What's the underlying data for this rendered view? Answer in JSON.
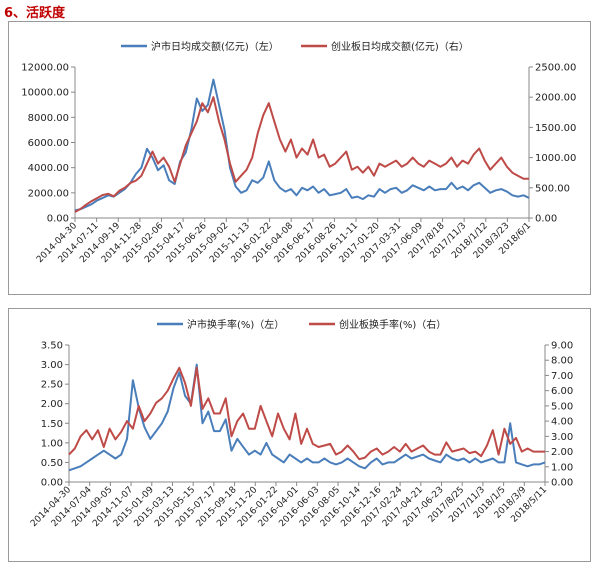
{
  "section_title": "6、活跃度",
  "colors": {
    "blue": "#4a7ebb",
    "red": "#be4b48"
  },
  "chart_data": [
    {
      "type": "line",
      "series": [
        {
          "name": "沪市日均成交额(亿元)（左）",
          "axis": "left",
          "values": [
            600,
            700,
            900,
            1100,
            1400,
            1600,
            1800,
            1700,
            2000,
            2300,
            2800,
            3500,
            4000,
            5500,
            4800,
            3800,
            4200,
            3000,
            2700,
            4500,
            5200,
            7000,
            9500,
            8500,
            9000,
            11000,
            9000,
            7000,
            4000,
            2500,
            2000,
            2200,
            3000,
            2800,
            3200,
            4500,
            3000,
            2400,
            2100,
            2300,
            1800,
            2400,
            2200,
            2500,
            2000,
            2300,
            1800,
            1900,
            2000,
            2300,
            1600,
            1700,
            1500,
            1800,
            1700,
            2300,
            2000,
            2300,
            2400,
            2000,
            2200,
            2600,
            2400,
            2200,
            2500,
            2200,
            2300,
            2300,
            2800,
            2300,
            2500,
            2200,
            2600,
            2800,
            2400,
            2000,
            2200,
            2300,
            2100,
            1800,
            1700,
            1800,
            1600
          ]
        },
        {
          "name": "创业板日均成交额(亿元)（右）",
          "axis": "right",
          "values": [
            100,
            150,
            220,
            280,
            330,
            380,
            400,
            360,
            450,
            500,
            580,
            620,
            700,
            900,
            1100,
            900,
            1000,
            850,
            600,
            900,
            1200,
            1400,
            1600,
            1900,
            1750,
            2000,
            1600,
            1300,
            900,
            600,
            700,
            800,
            1000,
            1400,
            1700,
            1900,
            1600,
            1300,
            1100,
            1300,
            1000,
            1150,
            1050,
            1300,
            1000,
            1050,
            850,
            900,
            1000,
            1100,
            800,
            850,
            750,
            850,
            700,
            900,
            850,
            900,
            950,
            850,
            900,
            1000,
            900,
            850,
            950,
            900,
            850,
            900,
            1000,
            850,
            950,
            900,
            1050,
            1150,
            950,
            800,
            900,
            1000,
            850,
            750,
            700,
            650,
            650
          ]
        }
      ],
      "x_tick_labels": [
        "2014-04-30",
        "2014-07-11",
        "2014-09-19",
        "2014-11-28",
        "2015-02-06",
        "2015-04-17",
        "2015-06-26",
        "2015-09-02",
        "2015-11-13",
        "2016-01-22",
        "2016-04-08",
        "2016-06-17",
        "2016-08-26",
        "2016-11-11",
        "2017-01-20",
        "2017-03-31",
        "2017-06-09",
        "2017/8/18",
        "2017/11/3",
        "2018/1/12",
        "2018/3/23",
        "2018/6/1"
      ],
      "ylim_left": [
        0,
        12000
      ],
      "yticks_left": [
        "0.00",
        "2000.00",
        "4000.00",
        "6000.00",
        "8000.00",
        "10000.00",
        "12000.00"
      ],
      "ylim_right": [
        0,
        2500
      ],
      "yticks_right": [
        "0.00",
        "500.00",
        "1000.00",
        "1500.00",
        "2000.00",
        "2500.00"
      ],
      "legend": "top"
    },
    {
      "type": "line",
      "series": [
        {
          "name": "沪市换手率(%)（左）",
          "axis": "left",
          "values": [
            0.3,
            0.35,
            0.4,
            0.5,
            0.6,
            0.7,
            0.8,
            0.7,
            0.6,
            0.7,
            1.1,
            2.6,
            1.9,
            1.4,
            1.1,
            1.3,
            1.5,
            1.8,
            2.4,
            2.8,
            2.2,
            2.0,
            3.0,
            1.5,
            1.8,
            1.3,
            1.3,
            1.6,
            0.8,
            1.1,
            0.9,
            0.7,
            0.8,
            0.7,
            1.0,
            0.7,
            0.6,
            0.5,
            0.7,
            0.6,
            0.5,
            0.6,
            0.5,
            0.5,
            0.6,
            0.5,
            0.45,
            0.5,
            0.6,
            0.5,
            0.4,
            0.35,
            0.5,
            0.6,
            0.45,
            0.5,
            0.5,
            0.6,
            0.7,
            0.6,
            0.65,
            0.7,
            0.6,
            0.55,
            0.5,
            0.7,
            0.6,
            0.55,
            0.6,
            0.5,
            0.6,
            0.5,
            0.55,
            0.6,
            0.5,
            0.5,
            1.5,
            0.5,
            0.45,
            0.4,
            0.45,
            0.45,
            0.5
          ]
        },
        {
          "name": "创业板换手率(%)（右）",
          "axis": "right",
          "values": [
            1.8,
            2.2,
            3.0,
            3.4,
            2.8,
            3.4,
            2.3,
            3.5,
            2.8,
            3.3,
            4.0,
            3.5,
            5.0,
            4.0,
            4.5,
            5.2,
            5.5,
            6.0,
            6.8,
            7.5,
            6.5,
            5.0,
            7.5,
            4.8,
            5.5,
            4.5,
            4.5,
            5.5,
            3.0,
            4.0,
            4.5,
            3.5,
            3.5,
            5.0,
            4.0,
            3.0,
            4.5,
            3.5,
            2.8,
            4.5,
            2.5,
            3.5,
            2.5,
            2.3,
            2.4,
            2.5,
            1.8,
            2.0,
            2.4,
            2.0,
            1.5,
            1.6,
            2.0,
            2.2,
            1.8,
            2.0,
            2.3,
            2.0,
            2.5,
            2.0,
            2.2,
            2.4,
            2.0,
            1.8,
            1.8,
            2.6,
            2.0,
            2.1,
            2.2,
            1.9,
            2.0,
            1.7,
            2.4,
            3.4,
            1.8,
            3.5,
            2.5,
            2.9,
            2.0,
            2.2,
            2.0,
            2.0,
            2.0
          ]
        }
      ],
      "x_tick_labels": [
        "2014-04-30",
        "2014-07-04",
        "2014-09-05",
        "2014-11-07",
        "2015-01-09",
        "2015-03-13",
        "2015-05-15",
        "2015-07-17",
        "2015-09-18",
        "2015-11-20",
        "2016-01-22",
        "2016-04-01",
        "2016-06-03",
        "2016-08-05",
        "2016-10-14",
        "2016-12-16",
        "2017-02-24",
        "2017-04-21",
        "2017-06-23",
        "2017/8/25",
        "2017/11/3",
        "2018/1/5",
        "2018/3/9",
        "2018/5/11"
      ],
      "ylim_left": [
        0,
        3.5
      ],
      "yticks_left": [
        "0.00",
        "0.50",
        "1.00",
        "1.50",
        "2.00",
        "2.50",
        "3.00",
        "3.50"
      ],
      "ylim_right": [
        0,
        9
      ],
      "yticks_right": [
        "0.00",
        "1.00",
        "2.00",
        "3.00",
        "4.00",
        "5.00",
        "6.00",
        "7.00",
        "8.00",
        "9.00"
      ],
      "legend": "top"
    }
  ]
}
